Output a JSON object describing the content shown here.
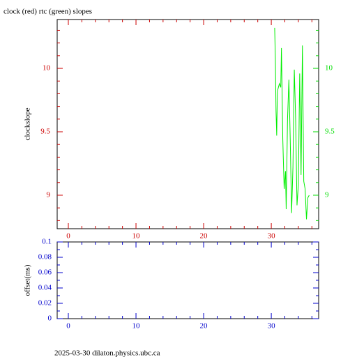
{
  "chart_data": [
    {
      "type": "line",
      "title": "clock (red) rtc (green) slopes",
      "y_label": "clockslope",
      "xlim": [
        -1.65,
        37.0
      ],
      "xticks": [
        0,
        10,
        20,
        30
      ],
      "xminorticks": [
        2,
        4,
        6,
        8,
        12,
        14,
        16,
        18,
        22,
        24,
        26,
        28,
        32,
        34,
        36
      ],
      "ylim": [
        8.736,
        10.385
      ],
      "yticks": [
        9,
        9.5,
        10
      ],
      "yminorticks": [
        8.8,
        8.9,
        9.1,
        9.2,
        9.3,
        9.4,
        9.6,
        9.7,
        9.8,
        9.9,
        10.1,
        10.2,
        10.3
      ],
      "y2lim": [
        8.736,
        10.385
      ],
      "y2ticks": [
        9,
        9.5,
        10
      ],
      "xtick_color": "#cc0000",
      "ytick_color": "#cc0000",
      "y2tick_color": "#00dd00",
      "series": [
        {
          "color": "#00ee00",
          "axis": "y2",
          "x": [
            30.5,
            30.6,
            30.7,
            30.8,
            30.9,
            31.2,
            31.4,
            31.5,
            31.7,
            31.9,
            32.1,
            32.2,
            32.4,
            32.6,
            32.8,
            33.0,
            33.2,
            33.4,
            33.6,
            33.8,
            34.0,
            34.2,
            34.4,
            34.6,
            34.8,
            35.0,
            35.2,
            35.4,
            35.6
          ],
          "values": [
            10.32,
            10.07,
            9.66,
            9.47,
            9.82,
            9.88,
            9.85,
            10.16,
            9.44,
            9.05,
            9.19,
            8.89,
            9.6,
            9.91,
            9.44,
            8.86,
            9.22,
            9.99,
            9.6,
            8.92,
            9.08,
            9.96,
            9.16,
            10.18,
            9.11,
            9.05,
            8.81,
            8.98,
            9.0
          ]
        }
      ]
    },
    {
      "type": "line",
      "y_label": "offset(ms)",
      "xlim": [
        -1.65,
        37.0
      ],
      "xticks": [
        0,
        10,
        20,
        30
      ],
      "xminorticks": [
        2,
        4,
        6,
        8,
        12,
        14,
        16,
        18,
        22,
        24,
        26,
        28,
        32,
        34,
        36
      ],
      "ylim": [
        0,
        0.1
      ],
      "yticks": [
        0,
        0.02,
        0.04,
        0.06,
        0.08,
        0.1
      ],
      "yminorticks": [
        0.01,
        0.03,
        0.05,
        0.07,
        0.09
      ],
      "xtick_color": "#0000cc",
      "ytick_color": "#0000cc",
      "series": []
    }
  ],
  "footer": "2025-03-30  dilaton.physics.ubc.ca"
}
